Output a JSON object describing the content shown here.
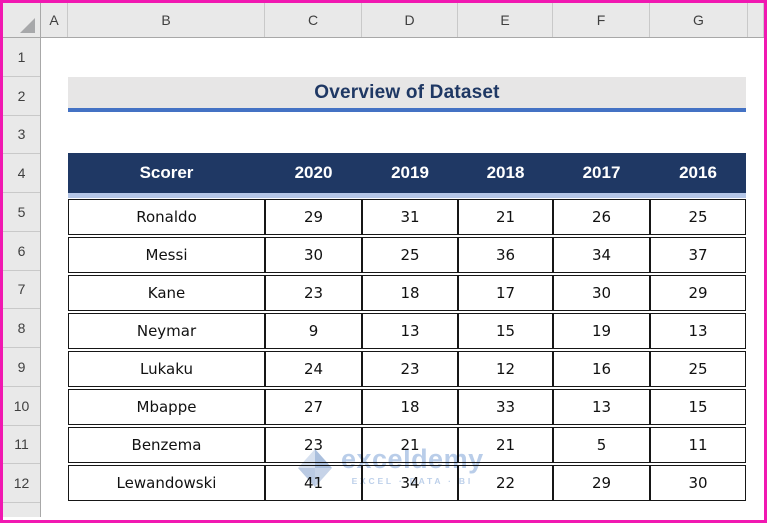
{
  "chrome": {
    "column_headers": [
      "A",
      "B",
      "C",
      "D",
      "E",
      "F",
      "G"
    ],
    "row_headers": [
      "1",
      "2",
      "3",
      "4",
      "5",
      "6",
      "7",
      "8",
      "9",
      "10",
      "11",
      "12"
    ]
  },
  "sheet": {
    "title": "Overview of Dataset",
    "table": {
      "columns": [
        "Scorer",
        "2020",
        "2019",
        "2018",
        "2017",
        "2016"
      ],
      "rows": [
        {
          "scorer": "Ronaldo",
          "values": [
            "29",
            "31",
            "21",
            "26",
            "25"
          ]
        },
        {
          "scorer": "Messi",
          "values": [
            "30",
            "25",
            "36",
            "34",
            "37"
          ]
        },
        {
          "scorer": "Kane",
          "values": [
            "23",
            "18",
            "17",
            "30",
            "29"
          ]
        },
        {
          "scorer": "Neymar",
          "values": [
            "9",
            "13",
            "15",
            "19",
            "13"
          ]
        },
        {
          "scorer": "Lukaku",
          "values": [
            "24",
            "23",
            "12",
            "16",
            "25"
          ]
        },
        {
          "scorer": "Mbappe",
          "values": [
            "27",
            "18",
            "33",
            "13",
            "15"
          ]
        },
        {
          "scorer": "Benzema",
          "values": [
            "23",
            "21",
            "21",
            "5",
            "11"
          ]
        },
        {
          "scorer": "Lewandowski",
          "values": [
            "41",
            "34",
            "22",
            "29",
            "30"
          ]
        }
      ]
    }
  },
  "watermark": {
    "brand": "exceldemy",
    "tagline": "EXCEL · DATA · BI"
  },
  "colors": {
    "frame_pink": "#F118B1",
    "header_navy": "#1F3864",
    "title_bg": "#E7E6E6",
    "title_underline": "#4472C4",
    "header_underline": "#B4C6E7",
    "watermark_blue": "#B9CDE9"
  }
}
